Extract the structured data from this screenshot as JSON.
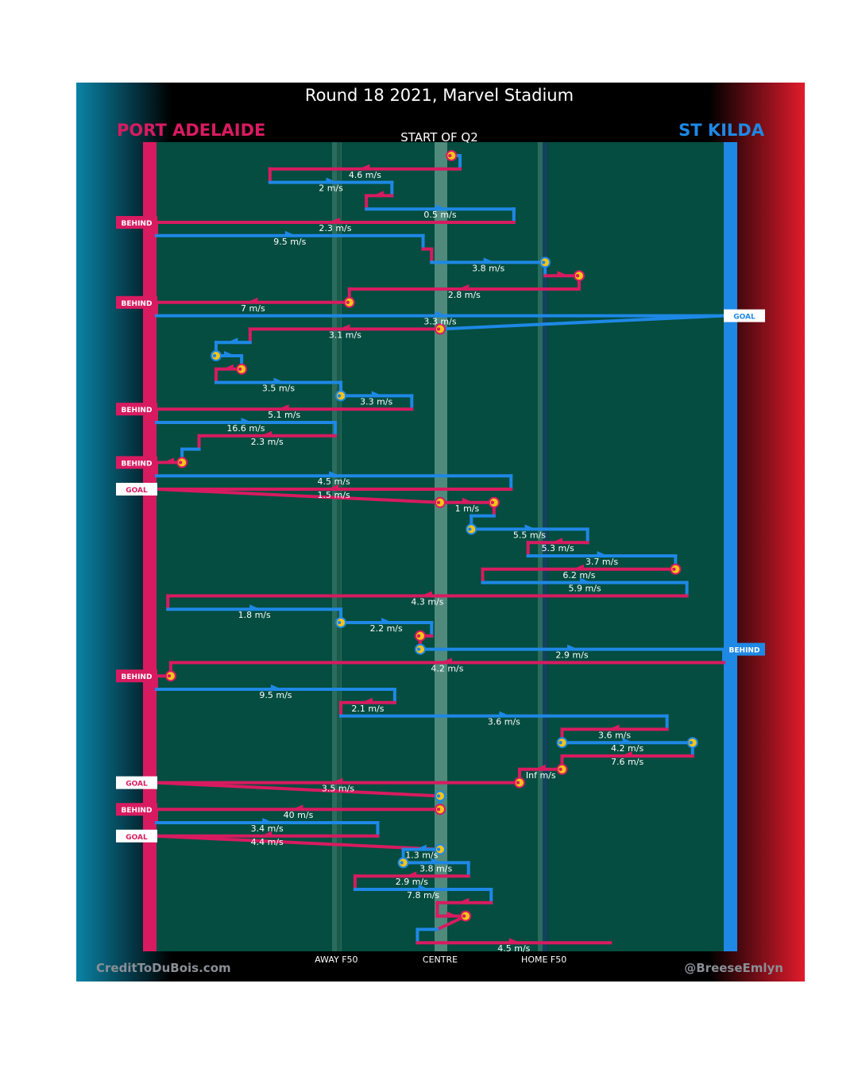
{
  "title": "Round 18 2021, Marvel Stadium",
  "teams": {
    "left": {
      "name": "PORT ADELAIDE",
      "color": "#d81b60"
    },
    "right": {
      "name": "ST KILDA",
      "color": "#1e88e5"
    }
  },
  "period_label": "START OF Q2",
  "credits": {
    "left": "CreditToDuBois.com",
    "right": "@BreeseEmlyn"
  },
  "colors": {
    "port": "#d81b60",
    "stk": "#1e88e5",
    "field": "#044d40",
    "marker": "#f5c518",
    "background": "#000000",
    "left_gradient_edge": "#0a84a6",
    "right_gradient_edge": "#e31b2c"
  },
  "chart_data": {
    "type": "line",
    "description_units": "x = field position from 0 (Port Adelaide goal line) to 100 (St Kilda goal line); y = possession chain sequence; speed labels as printed",
    "x_ticks": [
      {
        "x": 31.7,
        "label": "AWAY F50"
      },
      {
        "x": 50.0,
        "label": "CENTRE"
      },
      {
        "x": 68.3,
        "label": "HOME F50"
      }
    ],
    "chains": [
      {
        "team": "stk",
        "x": [
          52,
          53.5
        ],
        "label": "",
        "start_marker": true,
        "marker_team": "port"
      },
      {
        "team": "port",
        "x": [
          53.5,
          20
        ],
        "label": "4.6 m/s"
      },
      {
        "team": "stk",
        "x": [
          20,
          41.5
        ],
        "label": "2 m/s"
      },
      {
        "team": "port",
        "x": [
          41.5,
          37
        ],
        "label": ""
      },
      {
        "team": "stk",
        "x": [
          37,
          63
        ],
        "label": "0.5 m/s"
      },
      {
        "team": "port",
        "x": [
          63,
          0
        ],
        "label": "2.3 m/s",
        "outcome": "BEHIND"
      },
      {
        "team": "stk",
        "x": [
          0,
          47
        ],
        "label": "9.5 m/s"
      },
      {
        "team": "port",
        "x": [
          47,
          48.5
        ],
        "label": ""
      },
      {
        "team": "stk",
        "x": [
          48.5,
          68.5
        ],
        "label": "3.8 m/s",
        "end_marker": true
      },
      {
        "team": "port",
        "x": [
          68.5,
          74.5
        ],
        "label": "",
        "end_marker": true
      },
      {
        "team": "port",
        "x": [
          74.5,
          34
        ],
        "label": "2.8 m/s"
      },
      {
        "team": "port",
        "x": [
          34,
          0
        ],
        "label": "7 m/s",
        "outcome": "BEHIND",
        "start_marker": true
      },
      {
        "team": "stk",
        "x": [
          0,
          100
        ],
        "label": "3.3 m/s",
        "outcome": "GOAL"
      },
      {
        "team": "port",
        "x": [
          50,
          16.5
        ],
        "label": "3.1 m/s",
        "start_marker": true
      },
      {
        "team": "stk",
        "x": [
          16.5,
          10.5
        ],
        "label": ""
      },
      {
        "team": "stk",
        "x": [
          10.5,
          15
        ],
        "label": "",
        "start_marker": true
      },
      {
        "team": "port",
        "x": [
          15,
          10.5
        ],
        "label": "",
        "start_marker": true
      },
      {
        "team": "stk",
        "x": [
          10.5,
          32.5
        ],
        "label": "3.5 m/s"
      },
      {
        "team": "stk",
        "x": [
          32.5,
          45
        ],
        "label": "3.3 m/s",
        "start_marker": true
      },
      {
        "team": "port",
        "x": [
          45,
          0
        ],
        "label": "5.1 m/s",
        "outcome": "BEHIND"
      },
      {
        "team": "stk",
        "x": [
          0,
          31.5
        ],
        "label": "16.6 m/s"
      },
      {
        "team": "port",
        "x": [
          31.5,
          7.5
        ],
        "label": "2.3 m/s"
      },
      {
        "team": "stk",
        "x": [
          7.5,
          4.5
        ],
        "label": ""
      },
      {
        "team": "port",
        "x": [
          4.5,
          0
        ],
        "label": "",
        "outcome": "BEHIND",
        "start_marker": true
      },
      {
        "team": "stk",
        "x": [
          0,
          62.5
        ],
        "label": "4.5 m/s"
      },
      {
        "team": "port",
        "x": [
          62.5,
          0
        ],
        "label": "1.5 m/s",
        "outcome": "GOAL"
      },
      {
        "team": "port",
        "x": [
          50,
          59.5
        ],
        "label": "1 m/s",
        "start_marker": true,
        "end_marker": true
      },
      {
        "team": "stk",
        "x": [
          59.5,
          55.5
        ],
        "label": ""
      },
      {
        "team": "stk",
        "x": [
          55.5,
          76
        ],
        "label": "5.5 m/s",
        "start_marker": true
      },
      {
        "team": "port",
        "x": [
          76,
          65.5
        ],
        "label": "5.3 m/s"
      },
      {
        "team": "stk",
        "x": [
          65.5,
          91.5
        ],
        "label": "3.7 m/s"
      },
      {
        "team": "port",
        "x": [
          91.5,
          57.5
        ],
        "label": "6.2 m/s",
        "start_marker": true
      },
      {
        "team": "stk",
        "x": [
          57.5,
          93.5
        ],
        "label": "5.9 m/s"
      },
      {
        "team": "port",
        "x": [
          93.5,
          2
        ],
        "label": "4.3 m/s"
      },
      {
        "team": "stk",
        "x": [
          2,
          32.5
        ],
        "label": "1.8 m/s"
      },
      {
        "team": "stk",
        "x": [
          32.5,
          48.5
        ],
        "label": "2.2 m/s",
        "start_marker": true
      },
      {
        "team": "port",
        "x": [
          48.5,
          46.5
        ],
        "label": "",
        "end_marker": true
      },
      {
        "team": "stk",
        "x": [
          46.5,
          100
        ],
        "label": "2.9 m/s",
        "outcome": "BEHIND",
        "start_marker": true
      },
      {
        "team": "port",
        "x": [
          100,
          2.5
        ],
        "label": "4.2 m/s"
      },
      {
        "team": "port",
        "x": [
          2.5,
          0
        ],
        "label": "",
        "outcome": "BEHIND",
        "start_marker": true
      },
      {
        "team": "stk",
        "x": [
          0,
          42
        ],
        "label": "9.5 m/s"
      },
      {
        "team": "port",
        "x": [
          42,
          32.5
        ],
        "label": "2.1 m/s"
      },
      {
        "team": "stk",
        "x": [
          32.5,
          90
        ],
        "label": "3.6 m/s"
      },
      {
        "team": "port",
        "x": [
          90,
          71.5
        ],
        "label": "3.6 m/s"
      },
      {
        "team": "stk",
        "x": [
          71.5,
          94.5
        ],
        "label": "4.2 m/s",
        "start_marker": true,
        "end_marker": true
      },
      {
        "team": "port",
        "x": [
          94.5,
          71.5
        ],
        "label": "7.6 m/s"
      },
      {
        "team": "port",
        "x": [
          71.5,
          64
        ],
        "label": "Inf m/s",
        "start_marker": true
      },
      {
        "team": "port",
        "x": [
          64,
          0
        ],
        "label": "3.5 m/s",
        "outcome": "GOAL",
        "start_marker": true
      },
      {
        "team": "stk",
        "x": [
          50,
          50
        ],
        "label": "",
        "start_marker": true
      },
      {
        "team": "port",
        "x": [
          50,
          0
        ],
        "label": "40 m/s",
        "outcome": "BEHIND",
        "start_marker": true
      },
      {
        "team": "stk",
        "x": [
          0,
          39
        ],
        "label": "3.4 m/s"
      },
      {
        "team": "port",
        "x": [
          39,
          0
        ],
        "label": "4.4 m/s",
        "outcome": "GOAL"
      },
      {
        "team": "stk",
        "x": [
          50,
          43.5
        ],
        "label": "1.3 m/s",
        "start_marker": true
      },
      {
        "team": "stk",
        "x": [
          43.5,
          55
        ],
        "label": "3.8 m/s",
        "start_marker": true
      },
      {
        "team": "port",
        "x": [
          55,
          35
        ],
        "label": "2.9 m/s"
      },
      {
        "team": "stk",
        "x": [
          35,
          59
        ],
        "label": "7.8 m/s"
      },
      {
        "team": "port",
        "x": [
          59,
          49.5
        ],
        "label": ""
      },
      {
        "team": "port",
        "x": [
          49.5,
          54.5
        ],
        "label": "",
        "end_marker": true
      },
      {
        "team": "stk",
        "x": [
          49.5,
          46
        ],
        "label": ""
      },
      {
        "team": "port",
        "x": [
          46,
          80
        ],
        "label": "4.5 m/s"
      }
    ]
  }
}
